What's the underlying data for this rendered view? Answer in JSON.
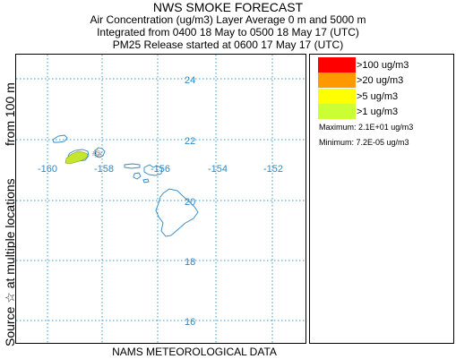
{
  "header": {
    "title": "NWS SMOKE FORECAST",
    "line2": "Air Concentration (ug/m3) Layer Average    0 m and  5000 m",
    "line3": "Integrated from 0400 18 May to 0500 18 May 17 (UTC)",
    "line4": "PM25 Release started at 0600 17 May 17 (UTC)"
  },
  "side_labels": {
    "from": "from  100 m",
    "source": "Source ☆   at multiple locations"
  },
  "footer": "NAMS METEOROLOGICAL DATA",
  "map": {
    "latitude_labels": [
      "24",
      "22",
      "20",
      "18",
      "16"
    ],
    "longitude_labels": [
      "-160",
      "-158",
      "-156",
      "-154",
      "-152"
    ],
    "colors": {
      "grid": "#3a9ad1",
      "coast": "#2f88c4",
      "plume": "#c6e62e"
    }
  },
  "legend": {
    "items": [
      {
        "label": ">100 ug/m3",
        "color": "#ff0000"
      },
      {
        "label": ">20 ug/m3",
        "color": "#ff9900"
      },
      {
        "label": ">5 ug/m3",
        "color": "#ffff00"
      },
      {
        "label": ">1 ug/m3",
        "color": "#ccff33"
      }
    ],
    "maximum": "Maximum: 2.1E+01 ug/m3",
    "minimum": "Minimum: 7.2E-05 ug/m3"
  }
}
